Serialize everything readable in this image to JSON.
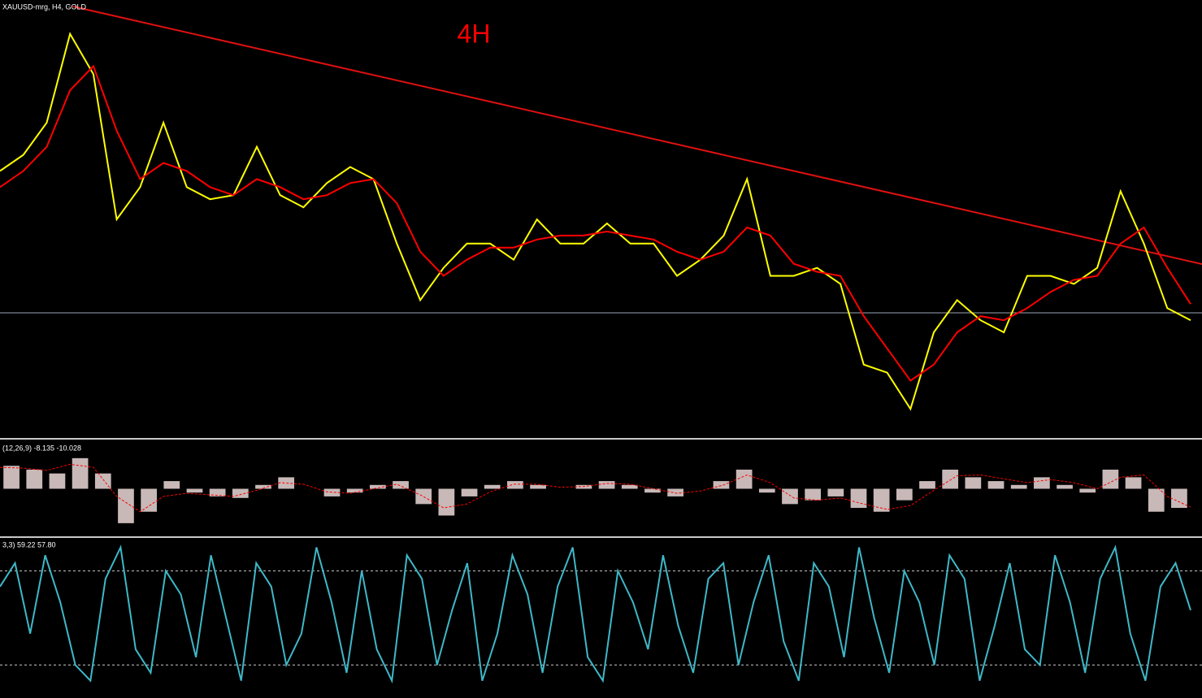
{
  "chart_data": [
    {
      "type": "line",
      "title": "XAUUSD-mrg, H4, GOLD",
      "annotation": "4H",
      "annotation_color": "#ff0000",
      "ylim": [
        0,
        540
      ],
      "series": [
        {
          "color": "#ffff00",
          "values": [
            330,
            350,
            390,
            500,
            450,
            270,
            310,
            390,
            310,
            295,
            300,
            360,
            300,
            285,
            315,
            335,
            320,
            240,
            170,
            210,
            240,
            240,
            220,
            270,
            240,
            240,
            265,
            240,
            240,
            200,
            220,
            250,
            320,
            200,
            200,
            210,
            190,
            90,
            80,
            35,
            130,
            170,
            145,
            130,
            200,
            200,
            190,
            210,
            305,
            240,
            160,
            145
          ]
        },
        {
          "color": "#ff0000",
          "values": [
            310,
            330,
            360,
            430,
            460,
            380,
            320,
            340,
            330,
            310,
            300,
            320,
            310,
            295,
            300,
            315,
            320,
            290,
            230,
            200,
            220,
            235,
            235,
            245,
            250,
            250,
            255,
            250,
            245,
            230,
            220,
            230,
            260,
            250,
            215,
            205,
            200,
            150,
            110,
            70,
            90,
            130,
            150,
            145,
            160,
            180,
            195,
            200,
            240,
            260,
            210,
            165
          ]
        }
      ]
    },
    {
      "type": "bar",
      "title": "(12,26,9) -8.135 -10.028",
      "ylim": [
        -60,
        60
      ],
      "series": [
        {
          "type": "bar",
          "color": "#c8b8b8",
          "values": [
            30,
            25,
            20,
            40,
            20,
            -45,
            -30,
            10,
            -5,
            -10,
            -12,
            5,
            15,
            0,
            -10,
            -5,
            5,
            10,
            -20,
            -35,
            -10,
            5,
            10,
            5,
            0,
            5,
            10,
            5,
            -5,
            -10,
            0,
            10,
            25,
            -5,
            -20,
            -15,
            -10,
            -25,
            -30,
            -15,
            10,
            25,
            15,
            10,
            5,
            15,
            5,
            -5,
            25,
            15,
            -30,
            -25
          ]
        },
        {
          "type": "line",
          "color": "#ff0000",
          "values": [
            28,
            27,
            24,
            32,
            28,
            -10,
            -30,
            -10,
            -6,
            -8,
            -10,
            -2,
            8,
            6,
            -4,
            -6,
            0,
            6,
            -8,
            -25,
            -20,
            -4,
            6,
            6,
            2,
            3,
            7,
            6,
            0,
            -6,
            -3,
            5,
            18,
            8,
            -12,
            -15,
            -12,
            -20,
            -27,
            -22,
            -2,
            17,
            18,
            13,
            8,
            12,
            8,
            0,
            15,
            18,
            -10,
            -24
          ]
        }
      ]
    },
    {
      "type": "line",
      "title": "3,3) 59.22 57.80",
      "ylim": [
        0,
        100
      ],
      "levels": [
        80,
        20
      ],
      "level_color": "#c8c8c8",
      "series": [
        {
          "color": "#3fb8c8",
          "values": [
            70,
            85,
            40,
            90,
            60,
            20,
            10,
            75,
            95,
            30,
            15,
            80,
            65,
            25,
            90,
            50,
            10,
            85,
            70,
            20,
            40,
            95,
            60,
            15,
            80,
            30,
            10,
            90,
            75,
            20,
            55,
            85,
            10,
            40,
            90,
            65,
            15,
            70,
            95,
            25,
            10,
            80,
            60,
            30,
            90,
            45,
            15,
            75,
            85,
            20,
            60,
            90,
            35,
            10,
            85,
            70,
            25,
            95,
            50,
            15,
            80,
            60,
            20,
            90,
            75,
            10,
            45,
            85,
            30,
            20,
            90,
            60,
            15,
            75,
            95,
            40,
            10,
            70,
            85,
            55
          ]
        }
      ]
    }
  ]
}
